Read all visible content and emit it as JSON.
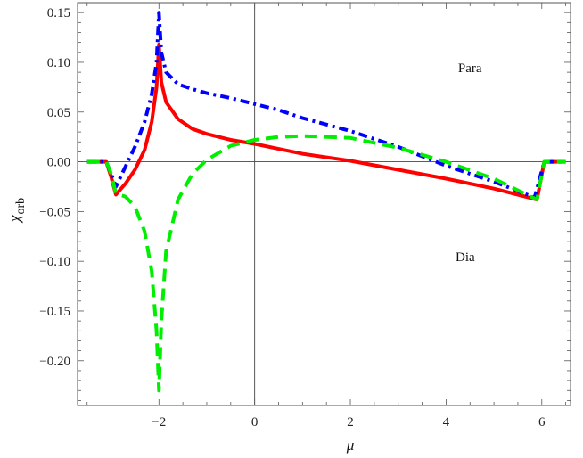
{
  "chart_data": {
    "type": "line",
    "xlabel": "μ",
    "ylabel": {
      "symbol": "χ",
      "subscript": "orb"
    },
    "xlim": [
      -3.7,
      6.6
    ],
    "ylim": [
      -0.245,
      0.16
    ],
    "xticks": [
      -2,
      0,
      2,
      4,
      6
    ],
    "xtick_labels": [
      "−2",
      "0",
      "2",
      "4",
      "6"
    ],
    "yticks": [
      0.15,
      0.1,
      0.05,
      0.0,
      -0.05,
      -0.1,
      -0.15,
      -0.2
    ],
    "ytick_labels": [
      "0.15",
      "0.10",
      "0.05",
      "0.00",
      "−0.05",
      "−0.10",
      "−0.15",
      "−0.20"
    ],
    "grid": false,
    "annotations": [
      {
        "text": "Para",
        "x": 4.5,
        "y": 0.09
      },
      {
        "text": "Dia",
        "x": 4.4,
        "y": -0.1
      }
    ],
    "series": [
      {
        "color": "#ff0000",
        "style": "solid",
        "points": [
          [
            -3.5,
            0
          ],
          [
            -3.1,
            0
          ],
          [
            -3.0,
            -0.015
          ],
          [
            -2.9,
            -0.033
          ],
          [
            -2.7,
            -0.022
          ],
          [
            -2.5,
            -0.008
          ],
          [
            -2.3,
            0.012
          ],
          [
            -2.15,
            0.04
          ],
          [
            -2.05,
            0.075
          ],
          [
            -2.0,
            0.118
          ],
          [
            -1.95,
            0.08
          ],
          [
            -1.85,
            0.06
          ],
          [
            -1.6,
            0.043
          ],
          [
            -1.3,
            0.033
          ],
          [
            -1.0,
            0.028
          ],
          [
            -0.5,
            0.022
          ],
          [
            0,
            0.018
          ],
          [
            0.5,
            0.013
          ],
          [
            1,
            0.008
          ],
          [
            2,
            0.001
          ],
          [
            3,
            -0.008
          ],
          [
            4,
            -0.017
          ],
          [
            5,
            -0.027
          ],
          [
            5.9,
            -0.038
          ],
          [
            6.05,
            0
          ],
          [
            6.5,
            0
          ]
        ]
      },
      {
        "color": "#0000ff",
        "style": "dash-dot",
        "points": [
          [
            -3.5,
            0
          ],
          [
            -3.1,
            0
          ],
          [
            -3.0,
            -0.012
          ],
          [
            -2.9,
            -0.025
          ],
          [
            -2.7,
            -0.005
          ],
          [
            -2.5,
            0.015
          ],
          [
            -2.3,
            0.04
          ],
          [
            -2.15,
            0.068
          ],
          [
            -2.05,
            0.1
          ],
          [
            -2.0,
            0.15
          ],
          [
            -1.95,
            0.11
          ],
          [
            -1.85,
            0.09
          ],
          [
            -1.6,
            0.078
          ],
          [
            -1.3,
            0.073
          ],
          [
            -1.0,
            0.069
          ],
          [
            -0.5,
            0.064
          ],
          [
            0,
            0.058
          ],
          [
            0.5,
            0.052
          ],
          [
            1,
            0.044
          ],
          [
            2,
            0.031
          ],
          [
            3,
            0.015
          ],
          [
            4,
            -0.004
          ],
          [
            5,
            -0.02
          ],
          [
            5.85,
            -0.036
          ],
          [
            6.05,
            0
          ],
          [
            6.5,
            0
          ]
        ]
      },
      {
        "color": "#00ee00",
        "style": "dashed",
        "points": [
          [
            -3.5,
            0
          ],
          [
            -3.1,
            0
          ],
          [
            -3.0,
            -0.012
          ],
          [
            -2.9,
            -0.032
          ],
          [
            -2.7,
            -0.035
          ],
          [
            -2.5,
            -0.045
          ],
          [
            -2.3,
            -0.07
          ],
          [
            -2.15,
            -0.11
          ],
          [
            -2.05,
            -0.17
          ],
          [
            -2.0,
            -0.23
          ],
          [
            -1.95,
            -0.16
          ],
          [
            -1.85,
            -0.09
          ],
          [
            -1.6,
            -0.038
          ],
          [
            -1.3,
            -0.012
          ],
          [
            -1.0,
            0.002
          ],
          [
            -0.5,
            0.016
          ],
          [
            0,
            0.022
          ],
          [
            0.5,
            0.025
          ],
          [
            1,
            0.026
          ],
          [
            2,
            0.024
          ],
          [
            3,
            0.014
          ],
          [
            4,
            0.0
          ],
          [
            5,
            -0.017
          ],
          [
            5.9,
            -0.038
          ],
          [
            6.05,
            0
          ],
          [
            6.5,
            0
          ]
        ]
      }
    ]
  }
}
